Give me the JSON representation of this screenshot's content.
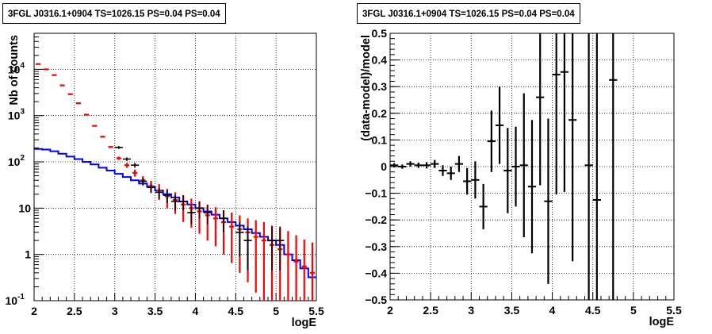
{
  "chart_data": [
    {
      "type": "histogram",
      "title": "3FGL J0316.1+0904 TS=1026.15 PS=0.04 PS=0.04",
      "xlabel": "logE",
      "ylabel": "Nb of counts",
      "xlim": [
        2,
        5.5
      ],
      "ylim": [
        0.1,
        60000
      ],
      "yscale": "log",
      "grid": true,
      "x_ticks": [
        "2",
        "2.5",
        "3",
        "3.5",
        "4",
        "4.5",
        "5",
        "5.5"
      ],
      "y_ticks": [
        {
          "v": 0.1,
          "label": "10",
          "exp": "-1"
        },
        {
          "v": 1,
          "label": "1",
          "exp": ""
        },
        {
          "v": 10,
          "label": "10",
          "exp": ""
        },
        {
          "v": 100,
          "label": "10",
          "exp": "2"
        },
        {
          "v": 1000,
          "label": "10",
          "exp": "3"
        },
        {
          "v": 10000,
          "label": "10",
          "exp": "4"
        }
      ],
      "bin_edges": [
        2.0,
        2.1,
        2.2,
        2.3,
        2.4,
        2.5,
        2.6,
        2.7,
        2.8,
        2.9,
        3.0,
        3.1,
        3.2,
        3.3,
        3.4,
        3.5,
        3.6,
        3.7,
        3.8,
        3.9,
        4.0,
        4.1,
        4.2,
        4.3,
        4.4,
        4.5,
        4.6,
        4.7,
        4.8,
        4.9,
        5.0,
        5.1,
        5.2,
        5.3,
        5.4,
        5.5
      ],
      "series": [
        {
          "name": "",
          "style": "step",
          "color": "#0000ff",
          "values": [
            190,
            185,
            170,
            150,
            130,
            115,
            100,
            88,
            75,
            65,
            55,
            47,
            40,
            34,
            29,
            24,
            20,
            17,
            14,
            12,
            10,
            8.5,
            7.2,
            6.0,
            5.0,
            4.2,
            3.5,
            2.9,
            2.4,
            2.0,
            1.6,
            1.0,
            0.75,
            0.5,
            0.32
          ]
        },
        {
          "name": "",
          "style": "error",
          "color": "#ff0000",
          "values": [
            13000,
            10000,
            7500,
            4500,
            2900,
            1850,
            1050,
            600,
            350,
            210,
            120,
            85,
            58,
            40,
            30,
            24,
            18,
            15,
            12,
            10,
            8.5,
            7.0,
            6.0,
            5.0,
            4.0,
            3.5,
            3.0,
            2.4,
            2.0,
            1.6,
            1.3,
            1.0,
            0.7,
            0.55,
            0.4
          ],
          "lo": [
            12800,
            9800,
            7300,
            4380,
            2830,
            1800,
            1020,
            580,
            335,
            200,
            110,
            75,
            48,
            31,
            21,
            15,
            10,
            7.5,
            5,
            3.8,
            2.8,
            2.0,
            1.5,
            1.0,
            0.65,
            0.4,
            0.25,
            0.15,
            0.1,
            0.1,
            0.1,
            0.1,
            0.1,
            0.1,
            0.1
          ],
          "hi": [
            13200,
            10200,
            7700,
            4620,
            2970,
            1900,
            1080,
            620,
            365,
            220,
            130,
            95,
            68,
            49,
            39,
            33,
            26,
            22,
            19,
            16,
            14,
            12,
            10.5,
            9.0,
            8.0,
            7.0,
            6.0,
            5.5,
            5.0,
            4.2,
            3.8,
            3.2,
            2.6,
            2.1,
            1.8
          ]
        },
        {
          "name": "",
          "style": "cross",
          "color": "#000000",
          "points": [
            {
              "x": 3.05,
              "y": 205
            },
            {
              "x": 3.15,
              "y": 115
            },
            {
              "x": 3.25,
              "y": 85
            },
            {
              "x": 3.35,
              "y": 38
            },
            {
              "x": 3.45,
              "y": 28
            },
            {
              "x": 3.55,
              "y": 22
            },
            {
              "x": 3.65,
              "y": 19
            },
            {
              "x": 3.75,
              "y": 14
            },
            {
              "x": 3.85,
              "y": 14
            },
            {
              "x": 3.95,
              "y": 8
            },
            {
              "x": 4.05,
              "y": 10
            },
            {
              "x": 4.15,
              "y": 8
            },
            {
              "x": 4.35,
              "y": 6
            },
            {
              "x": 4.55,
              "y": 3
            },
            {
              "x": 4.65,
              "y": 2
            },
            {
              "x": 4.95,
              "y": 2
            },
            {
              "x": 5.05,
              "y": 2
            }
          ],
          "lo": [
            190,
            105,
            75,
            31,
            22,
            16,
            13,
            9,
            9,
            4.5,
            6,
            4.5,
            3,
            0.9,
            0.45,
            0.45,
            0.45
          ],
          "hi": [
            220,
            125,
            95,
            45,
            34,
            28,
            25,
            19,
            19,
            11.5,
            14,
            11.5,
            9,
            5,
            4,
            4,
            4
          ]
        }
      ]
    },
    {
      "type": "scatter",
      "title": "3FGL J0316.1+0904 TS=1026.15 PS=0.04 PS=0.04",
      "xlabel": "logE",
      "ylabel": "(data-model)/model",
      "xlim": [
        2,
        5.5
      ],
      "ylim": [
        -0.5,
        0.5
      ],
      "grid": true,
      "x_ticks": [
        "2",
        "2.5",
        "3",
        "3.5",
        "4",
        "4.5",
        "5",
        "5.5"
      ],
      "y_ticks": [
        "−0.5",
        "−0.4",
        "−0.3",
        "−0.2",
        "−0.1",
        "0",
        "0.1",
        "0.2",
        "0.3",
        "0.4",
        "0.5"
      ],
      "series": [
        {
          "name": "",
          "color": "#000000",
          "points": [
            {
              "x": 2.05,
              "y": 0.005,
              "err": 0.008
            },
            {
              "x": 2.15,
              "y": 0.0,
              "err": 0.008
            },
            {
              "x": 2.25,
              "y": 0.01,
              "err": 0.01
            },
            {
              "x": 2.35,
              "y": 0.005,
              "err": 0.01
            },
            {
              "x": 2.45,
              "y": 0.005,
              "err": 0.012
            },
            {
              "x": 2.55,
              "y": 0.01,
              "err": 0.015
            },
            {
              "x": 2.65,
              "y": -0.015,
              "err": 0.02
            },
            {
              "x": 2.75,
              "y": -0.025,
              "err": 0.025
            },
            {
              "x": 2.85,
              "y": 0.01,
              "err": 0.03
            },
            {
              "x": 2.95,
              "y": -0.055,
              "err": 0.05
            },
            {
              "x": 3.05,
              "y": -0.05,
              "err": 0.07
            },
            {
              "x": 3.15,
              "y": -0.15,
              "err": 0.085
            },
            {
              "x": 3.25,
              "y": 0.095,
              "err": 0.115
            },
            {
              "x": 3.35,
              "y": 0.155,
              "err": 0.145
            },
            {
              "x": 3.45,
              "y": -0.015,
              "err": 0.16
            },
            {
              "x": 3.55,
              "y": 0.0,
              "err": 0.15
            },
            {
              "x": 3.65,
              "y": 0.005,
              "err": 0.27
            },
            {
              "x": 3.75,
              "y": -0.075,
              "err": 0.25
            },
            {
              "x": 3.85,
              "y": 0.26,
              "err": 0.33
            },
            {
              "x": 3.95,
              "y": -0.13,
              "err": 0.31
            },
            {
              "x": 4.05,
              "y": 0.345,
              "err": 0.45
            },
            {
              "x": 4.15,
              "y": 0.355,
              "err": 0.45
            },
            {
              "x": 4.25,
              "y": 0.175,
              "err": 0.53
            },
            {
              "x": 4.45,
              "y": 0.005,
              "err": 0.6
            },
            {
              "x": 4.55,
              "y": -0.125,
              "err": 0.7
            },
            {
              "x": 4.75,
              "y": 0.325,
              "err": 0.9
            }
          ]
        }
      ]
    }
  ]
}
